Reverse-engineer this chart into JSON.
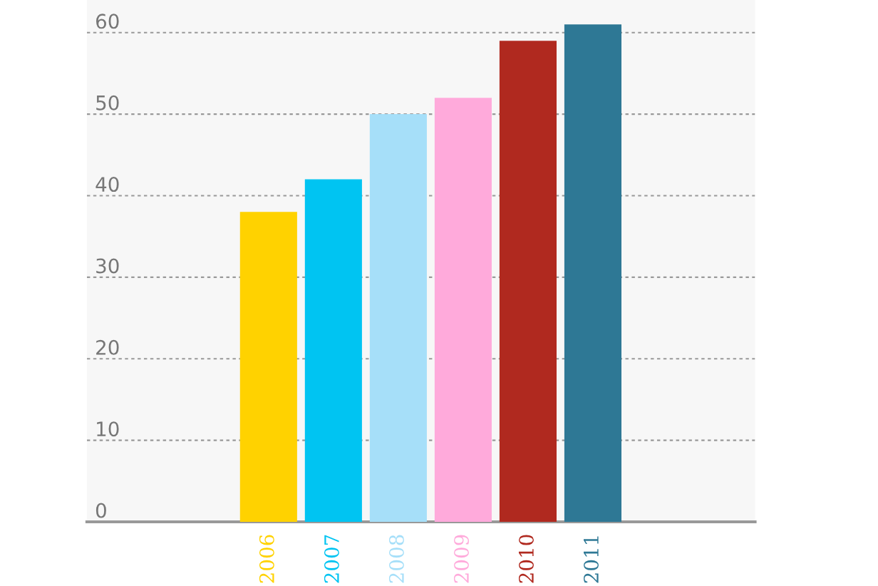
{
  "chart_data": {
    "type": "bar",
    "categories": [
      "2006",
      "2007",
      "2008",
      "2009",
      "2010",
      "2011"
    ],
    "values": [
      38,
      42,
      50,
      52,
      59,
      61
    ],
    "colors": [
      "#ffd200",
      "#00c4f2",
      "#a6dff9",
      "#ffaadb",
      "#b0291f",
      "#2e7895"
    ],
    "ylim": [
      0,
      64
    ],
    "yticks": [
      0,
      10,
      20,
      30,
      40,
      50,
      60
    ],
    "grid": "y"
  }
}
